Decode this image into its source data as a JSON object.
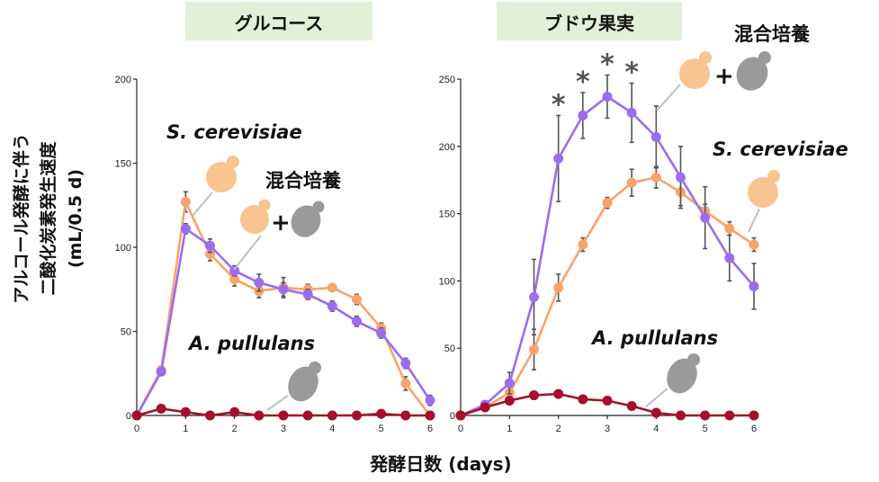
{
  "figure": {
    "ylabel_line1": "アルコール発酵に伴う",
    "ylabel_line2": "二酸化炭素発生速度",
    "ylabel_line3": "(mL/0.5 d)",
    "xlabel": "発酵日数 (days)"
  },
  "colors": {
    "mixed": "#9b6cf0",
    "s_cerevisiae": "#f8a36a",
    "a_pullulans": "#a50f2c",
    "error_bar": "#555555",
    "panel_title_bg": "#e2f0d9",
    "cell_s_cerevisiae": "#f8c490",
    "cell_a_pullulans": "#9a9a9a"
  },
  "icons": {
    "s_cerevisiae_cell": "budding-yeast-orange-icon",
    "a_pullulans_cell": "budding-yeast-grey-icon"
  },
  "chart_data": [
    {
      "type": "line",
      "title": "グルコース",
      "xlabel": "発酵日数 (days)",
      "ylabel": "アルコール発酵に伴う二酸化炭素発生速度 (mL/0.5 d)",
      "x": [
        0,
        0.5,
        1,
        1.5,
        2,
        2.5,
        3,
        3.5,
        4,
        4.5,
        5,
        5.5,
        6
      ],
      "xticks": [
        0,
        1,
        2,
        3,
        4,
        5,
        6
      ],
      "yticks": [
        0,
        50,
        100,
        150,
        200
      ],
      "xlim": [
        0,
        6
      ],
      "ylim": [
        0,
        200
      ],
      "series": [
        {
          "key": "s_cerevisiae",
          "values": [
            0,
            27,
            127,
            96,
            81,
            74,
            76,
            75,
            76,
            69,
            52,
            19,
            0
          ],
          "errors": [
            0,
            2,
            6,
            4,
            4,
            4,
            6,
            3,
            2,
            3,
            3,
            4,
            0
          ]
        },
        {
          "key": "mixed",
          "values": [
            0,
            26,
            111,
            101,
            86,
            79,
            75,
            72,
            65,
            56,
            49,
            31,
            9
          ],
          "errors": [
            0,
            2,
            3,
            4,
            3,
            5,
            4,
            3,
            3,
            3,
            3,
            3,
            3
          ]
        },
        {
          "key": "a_pullulans",
          "values": [
            0,
            4,
            2,
            0,
            2,
            0,
            0,
            0,
            0,
            0,
            1,
            0,
            0
          ],
          "errors": [
            0,
            1,
            1,
            1,
            1,
            1,
            1,
            1,
            1,
            1,
            1,
            1,
            1
          ]
        }
      ],
      "annotations": {
        "s_cerevisiae": "S. cerevisiae",
        "mixed": "混合培養",
        "plus": "+",
        "a_pullulans": "A. pullulans"
      }
    },
    {
      "type": "line",
      "title": "ブドウ果実",
      "xlabel": "発酵日数 (days)",
      "ylabel": "アルコール発酵に伴う二酸化炭素発生速度 (mL/0.5 d)",
      "x": [
        0,
        0.5,
        1,
        1.5,
        2,
        2.5,
        3,
        3.5,
        4,
        4.5,
        5,
        5.5,
        6
      ],
      "xticks": [
        0,
        1,
        2,
        3,
        4,
        5,
        6
      ],
      "yticks": [
        0,
        50,
        100,
        150,
        200,
        250
      ],
      "xlim": [
        0,
        6
      ],
      "ylim": [
        0,
        250
      ],
      "series": [
        {
          "key": "s_cerevisiae",
          "values": [
            0,
            6,
            17,
            49,
            95,
            127,
            158,
            173,
            177,
            166,
            152,
            139,
            127
          ],
          "errors": [
            0,
            1,
            3,
            15,
            10,
            5,
            4,
            10,
            8,
            10,
            5,
            5,
            5
          ]
        },
        {
          "key": "mixed",
          "values": [
            0,
            8,
            24,
            88,
            191,
            223,
            237,
            225,
            207,
            177,
            147,
            117,
            96
          ],
          "errors": [
            0,
            1,
            8,
            28,
            32,
            17,
            16,
            22,
            23,
            23,
            23,
            17,
            17
          ]
        },
        {
          "key": "a_pullulans",
          "values": [
            0,
            6,
            11,
            15,
            16,
            12,
            11,
            7,
            2,
            0,
            0,
            0,
            0
          ],
          "errors": [
            0,
            1,
            1,
            1,
            1,
            1,
            1,
            1,
            1,
            0,
            0,
            0,
            0
          ]
        }
      ],
      "significance": {
        "marker": "*",
        "x": [
          2,
          2.5,
          3,
          3.5
        ]
      },
      "annotations": {
        "mixed": "混合培養",
        "plus": "+",
        "s_cerevisiae": "S. cerevisiae",
        "a_pullulans": "A. pullulans"
      }
    }
  ]
}
